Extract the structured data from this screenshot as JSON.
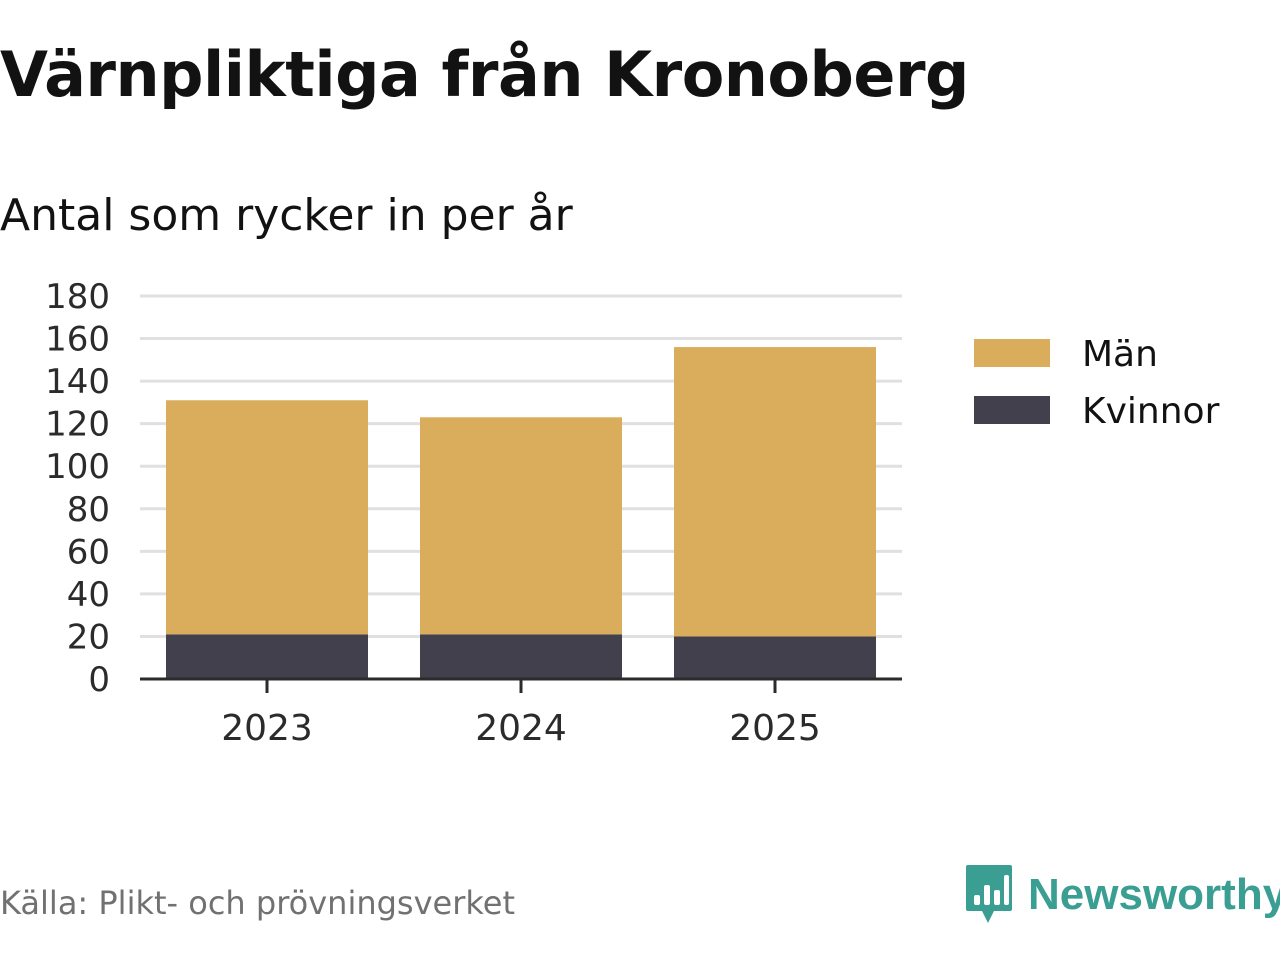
{
  "header": {
    "title": "Värnpliktiga från Kronoberg",
    "subtitle": "Antal som rycker in per år"
  },
  "footer": {
    "source": "Källa: Plikt- och prövningsverket",
    "brand": "Newsworthy"
  },
  "colors": {
    "man": "#d9ad5b",
    "kvinnor": "#43404e",
    "grid": "#e0e0e0",
    "axis": "#2b2b2b",
    "brand": "#3a9e93"
  },
  "chart_data": {
    "type": "bar",
    "stacked": true,
    "categories": [
      "2023",
      "2024",
      "2025"
    ],
    "series": [
      {
        "name": "Kvinnor",
        "values": [
          21,
          21,
          20
        ],
        "color": "#43404e"
      },
      {
        "name": "Män",
        "values": [
          110,
          102,
          136
        ],
        "color": "#d9ad5b"
      }
    ],
    "legend": [
      "Män",
      "Kvinnor"
    ],
    "legend_position": "right",
    "ylim": [
      0,
      180
    ],
    "yticks": [
      "0",
      "20",
      "40",
      "60",
      "80",
      "100",
      "120",
      "140",
      "160",
      "180"
    ],
    "grid": true,
    "xlabel": "",
    "ylabel": ""
  }
}
